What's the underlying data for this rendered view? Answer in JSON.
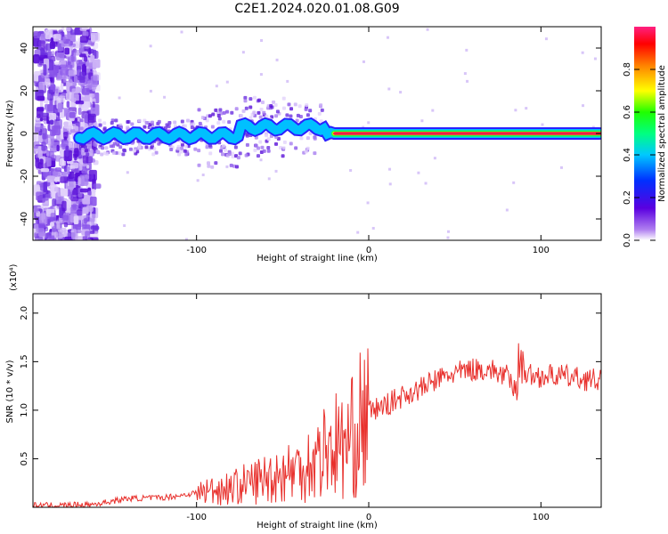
{
  "title": "C2E1.2024.020.01.08.G09",
  "colors": {
    "line": "#e8302c",
    "ridge": "#e8204a",
    "background": "#ffffff",
    "frame": "#000000"
  },
  "chart_data": [
    {
      "type": "heatmap",
      "xlabel": "Height of straight line (km)",
      "ylabel": "Frequency (Hz)",
      "xlim": [
        -195,
        135
      ],
      "ylim": [
        -50,
        50
      ],
      "x_ticks": [
        "-100",
        "0",
        "100"
      ],
      "x_tick_values": [
        -100,
        0,
        100
      ],
      "y_ticks": [
        "-40",
        "-20",
        "0",
        "20",
        "40"
      ],
      "y_tick_values": [
        -40,
        -20,
        0,
        20,
        40
      ],
      "colorbar": {
        "label": "Normalized spectral amplitude",
        "range": [
          0,
          1
        ],
        "ticks": [
          "0.0",
          "0.2",
          "0.4",
          "0.6",
          "0.8"
        ],
        "tick_values": [
          0,
          0.2,
          0.4,
          0.6,
          0.8
        ],
        "colormap": "rainbow (purple to red)"
      },
      "ridge": {
        "description_free": true,
        "frequency_hz": 0,
        "x_start": -168,
        "x_end": 135,
        "noise_region_x": [
          -195,
          -160
        ]
      },
      "grid": false
    },
    {
      "type": "line",
      "xlabel": "Height of straight line (km)",
      "ylabel": "SNR (10 * v/v)",
      "y_multiplier": "(x10⁴)",
      "xlim": [
        -195,
        135
      ],
      "ylim": [
        0,
        2.2
      ],
      "x_ticks": [
        "-100",
        "0",
        "100"
      ],
      "x_tick_values": [
        -100,
        0,
        100
      ],
      "y_ticks": [
        "0.5",
        "1.0",
        "1.5",
        "2.0"
      ],
      "y_tick_values": [
        0.5,
        1.0,
        1.5,
        2.0
      ],
      "series": [
        {
          "x": [
            -195,
            -180,
            -160,
            -150,
            -140,
            -120,
            -110,
            -100,
            -90,
            -80,
            -70,
            -60,
            -50,
            -40,
            -30,
            -25,
            -20,
            -15,
            -10,
            -5,
            0,
            5,
            10,
            20,
            30,
            40,
            50,
            60,
            70,
            80,
            85,
            88,
            90,
            95,
            100,
            110,
            120,
            135
          ],
          "y": [
            0.02,
            0.02,
            0.03,
            0.06,
            0.09,
            0.1,
            0.12,
            0.15,
            0.18,
            0.2,
            0.25,
            0.3,
            0.35,
            0.4,
            0.5,
            0.6,
            0.65,
            0.62,
            0.7,
            0.85,
            0.98,
            1.02,
            1.05,
            1.15,
            1.22,
            1.32,
            1.38,
            1.42,
            1.42,
            1.35,
            1.2,
            1.2,
            1.4,
            1.35,
            1.35,
            1.36,
            1.33,
            1.3
          ]
        }
      ],
      "grid": false
    }
  ]
}
